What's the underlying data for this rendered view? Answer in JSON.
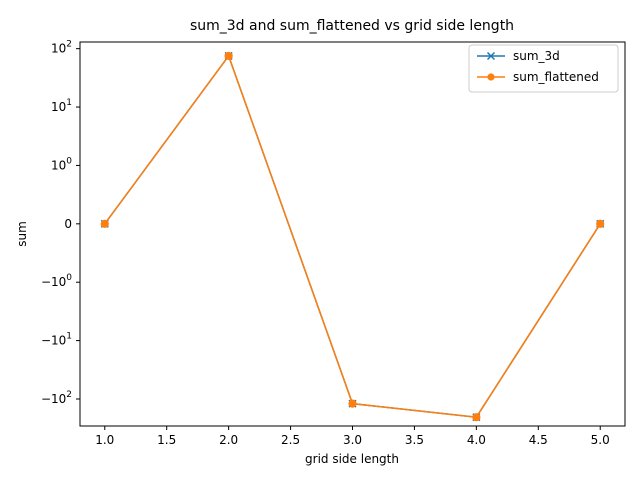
{
  "chart_data": {
    "type": "line",
    "title": "sum_3d and sum_flattened vs grid side length",
    "xlabel": "grid side length",
    "ylabel": "sum",
    "x": [
      1,
      2,
      3,
      4,
      5
    ],
    "xlim": [
      0.8,
      5.2
    ],
    "yscale": "symlog",
    "ylim": [
      -290,
      130
    ],
    "x_ticks": [
      1.0,
      1.5,
      2.0,
      2.5,
      3.0,
      3.5,
      4.0,
      4.5,
      5.0
    ],
    "x_tick_labels": [
      "1.0",
      "1.5",
      "2.0",
      "2.5",
      "3.0",
      "3.5",
      "4.0",
      "4.5",
      "5.0"
    ],
    "y_ticks": [
      {
        "value": 100,
        "base": "10",
        "exp": "2"
      },
      {
        "value": 10,
        "base": "10",
        "exp": "1"
      },
      {
        "value": 1,
        "base": "10",
        "exp": "0"
      },
      {
        "value": 0,
        "base": "0",
        "exp": ""
      },
      {
        "value": -1,
        "base": "−10",
        "exp": "0"
      },
      {
        "value": -10,
        "base": "−10",
        "exp": "1"
      },
      {
        "value": -100,
        "base": "−10",
        "exp": "2"
      }
    ],
    "series": [
      {
        "name": "sum_3d",
        "values": [
          0,
          75,
          -120,
          -205,
          0
        ],
        "color": "#1f77b4",
        "marker": "x"
      },
      {
        "name": "sum_flattened",
        "values": [
          0,
          75,
          -120,
          -205,
          0
        ],
        "color": "#ff7f0e",
        "marker": "o"
      }
    ],
    "legend": "top-right",
    "grid": false
  }
}
